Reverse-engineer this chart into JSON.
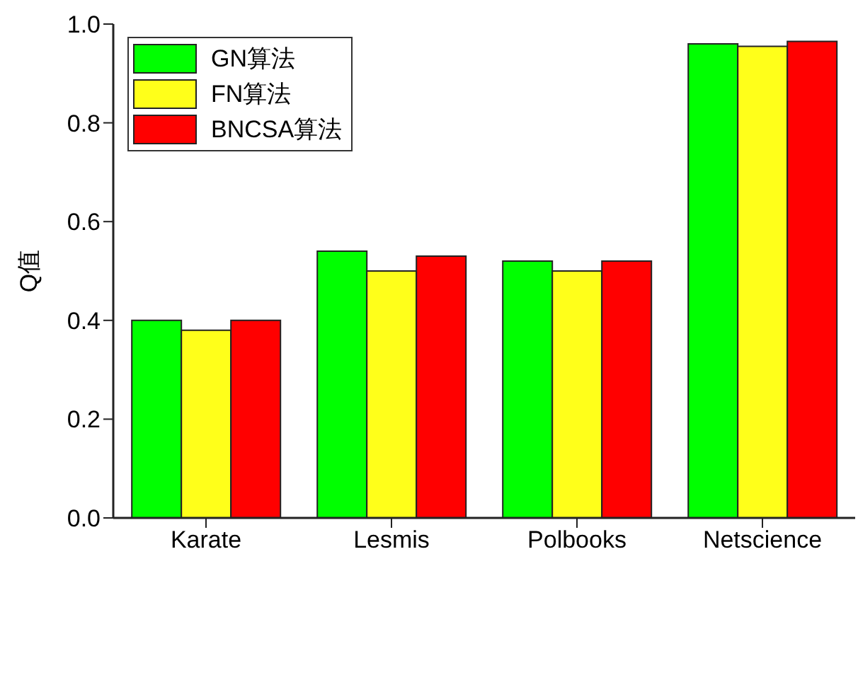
{
  "chart_data": {
    "type": "bar",
    "ylabel": "Q值",
    "categories": [
      "Karate",
      "Lesmis",
      "Polbooks",
      "Netscience"
    ],
    "series": [
      {
        "name": "GN算法",
        "color": "#00ff00",
        "values": [
          0.4,
          0.54,
          0.52,
          0.96
        ]
      },
      {
        "name": "FN算法",
        "color": "#ffff1a",
        "values": [
          0.38,
          0.5,
          0.5,
          0.955
        ]
      },
      {
        "name": "BNCSA算法",
        "color": "#ff0000",
        "values": [
          0.4,
          0.53,
          0.52,
          0.965
        ]
      }
    ],
    "ylim": [
      0,
      1
    ],
    "yticks": [
      {
        "value": 0,
        "label": "0.0"
      },
      {
        "value": 0.2,
        "label": "0.2"
      },
      {
        "value": 0.4,
        "label": "0.4"
      },
      {
        "value": 0.6,
        "label": "0.6"
      },
      {
        "value": 0.8,
        "label": "0.8"
      },
      {
        "value": 1,
        "label": "1.0"
      }
    ],
    "grid": false,
    "legend": "top left"
  }
}
